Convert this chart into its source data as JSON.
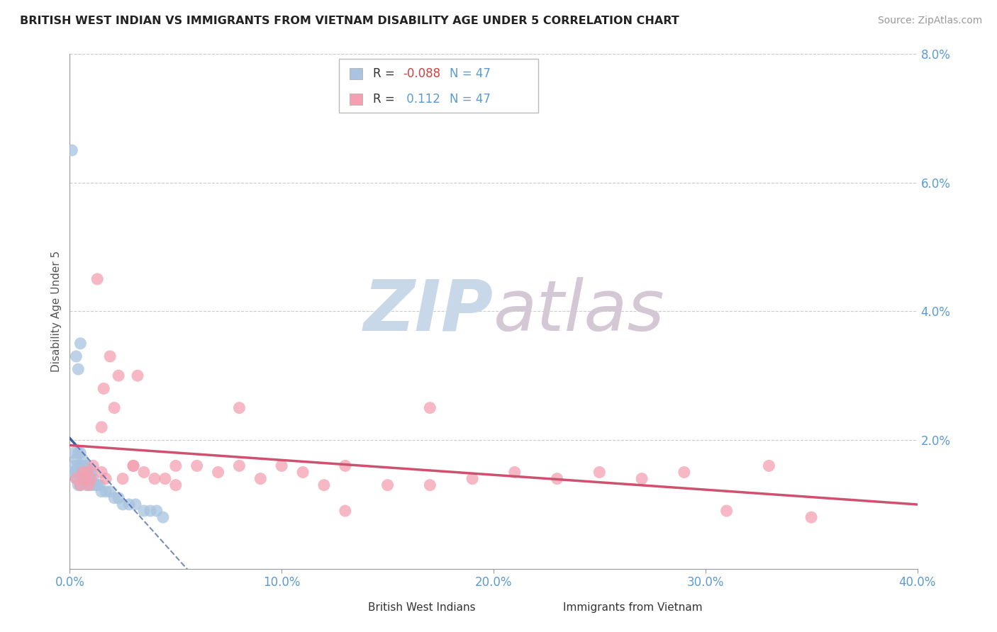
{
  "title": "BRITISH WEST INDIAN VS IMMIGRANTS FROM VIETNAM DISABILITY AGE UNDER 5 CORRELATION CHART",
  "source": "Source: ZipAtlas.com",
  "ylabel": "Disability Age Under 5",
  "xlim": [
    0,
    0.4
  ],
  "ylim": [
    0,
    0.08
  ],
  "xticks": [
    0.0,
    0.1,
    0.2,
    0.3,
    0.4
  ],
  "xticklabels": [
    "0.0%",
    "10.0%",
    "20.0%",
    "30.0%",
    "40.0%"
  ],
  "yticks_right": [
    0.0,
    0.02,
    0.04,
    0.06,
    0.08
  ],
  "yticklabels_right": [
    "",
    "2.0%",
    "4.0%",
    "6.0%",
    "8.0%"
  ],
  "R_blue": -0.088,
  "R_pink": 0.112,
  "N_blue": 47,
  "N_pink": 47,
  "legend_label_blue": "British West Indians",
  "legend_label_pink": "Immigrants from Vietnam",
  "color_blue": "#a8c4e0",
  "color_blue_line": "#3a5fa0",
  "color_pink": "#f4a0b0",
  "color_pink_line": "#d05070",
  "watermark_zip": "ZIP",
  "watermark_atlas": "atlas",
  "watermark_color_zip": "#c5d5e5",
  "watermark_color_atlas": "#d8c8d8",
  "background_color": "#ffffff",
  "blue_scatter_x": [
    0.001,
    0.002,
    0.002,
    0.003,
    0.003,
    0.003,
    0.004,
    0.004,
    0.004,
    0.004,
    0.005,
    0.005,
    0.005,
    0.005,
    0.006,
    0.006,
    0.006,
    0.007,
    0.007,
    0.007,
    0.008,
    0.008,
    0.008,
    0.009,
    0.009,
    0.01,
    0.01,
    0.011,
    0.012,
    0.013,
    0.014,
    0.015,
    0.017,
    0.019,
    0.021,
    0.023,
    0.025,
    0.028,
    0.031,
    0.035,
    0.038,
    0.041,
    0.044,
    0.003,
    0.004,
    0.005,
    0.001
  ],
  "blue_scatter_y": [
    0.015,
    0.016,
    0.018,
    0.014,
    0.015,
    0.017,
    0.013,
    0.015,
    0.016,
    0.018,
    0.013,
    0.015,
    0.016,
    0.018,
    0.014,
    0.015,
    0.017,
    0.014,
    0.015,
    0.016,
    0.013,
    0.015,
    0.016,
    0.014,
    0.015,
    0.013,
    0.015,
    0.014,
    0.013,
    0.013,
    0.013,
    0.012,
    0.012,
    0.012,
    0.011,
    0.011,
    0.01,
    0.01,
    0.01,
    0.009,
    0.009,
    0.009,
    0.008,
    0.033,
    0.031,
    0.035,
    0.065
  ],
  "pink_scatter_x": [
    0.003,
    0.005,
    0.006,
    0.007,
    0.008,
    0.009,
    0.01,
    0.011,
    0.013,
    0.015,
    0.016,
    0.017,
    0.019,
    0.021,
    0.023,
    0.025,
    0.03,
    0.032,
    0.035,
    0.04,
    0.045,
    0.05,
    0.06,
    0.07,
    0.08,
    0.09,
    0.1,
    0.11,
    0.13,
    0.15,
    0.17,
    0.19,
    0.21,
    0.23,
    0.25,
    0.27,
    0.29,
    0.31,
    0.33,
    0.35,
    0.17,
    0.13,
    0.015,
    0.03,
    0.05,
    0.08,
    0.12
  ],
  "pink_scatter_y": [
    0.014,
    0.013,
    0.015,
    0.014,
    0.015,
    0.013,
    0.014,
    0.016,
    0.045,
    0.015,
    0.028,
    0.014,
    0.033,
    0.025,
    0.03,
    0.014,
    0.016,
    0.03,
    0.015,
    0.014,
    0.014,
    0.013,
    0.016,
    0.015,
    0.016,
    0.014,
    0.016,
    0.015,
    0.016,
    0.013,
    0.025,
    0.014,
    0.015,
    0.014,
    0.015,
    0.014,
    0.015,
    0.009,
    0.016,
    0.008,
    0.013,
    0.009,
    0.022,
    0.016,
    0.016,
    0.025,
    0.013
  ]
}
